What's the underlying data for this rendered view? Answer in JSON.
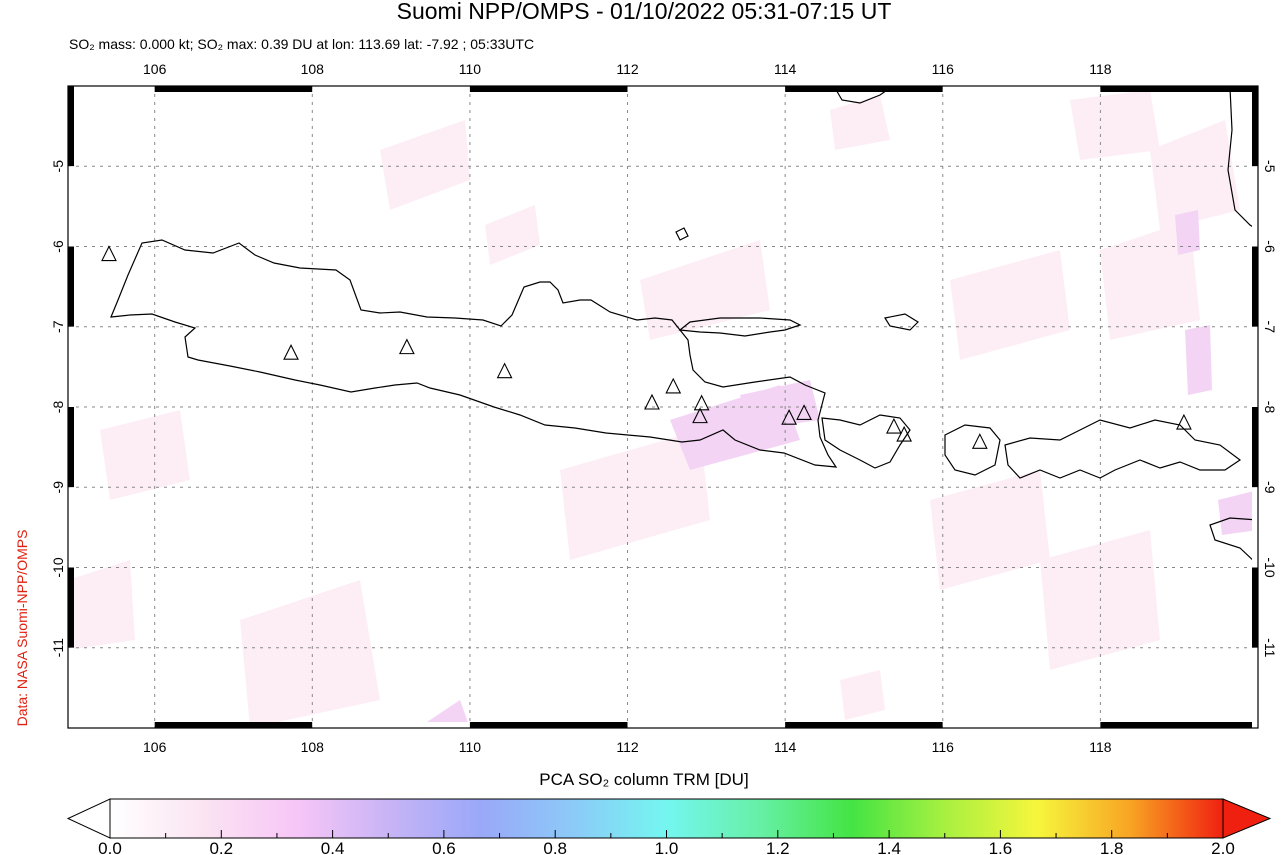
{
  "title": "Suomi NPP/OMPS - 01/10/2022 05:31-07:15 UT",
  "subtitle": "SO₂ mass: 0.000 kt; SO₂ max: 0.39 DU at lon: 113.69 lat: -7.92 ; 05:33UTC",
  "credit": "Data: NASA Suomi-NPP/OMPS",
  "map": {
    "lon_range": [
      104.9,
      120.0
    ],
    "lat_range": [
      -12.0,
      -4.0
    ],
    "lon_ticks": [
      "106",
      "108",
      "110",
      "112",
      "114",
      "116",
      "118"
    ],
    "lat_ticks": [
      "-5",
      "-6",
      "-7",
      "-8",
      "-9",
      "-10",
      "-11"
    ],
    "grid": true,
    "volcanoes": [
      {
        "lon": 105.42,
        "lat": -6.1
      },
      {
        "lon": 107.73,
        "lat": -7.33
      },
      {
        "lon": 109.2,
        "lat": -7.26
      },
      {
        "lon": 110.44,
        "lat": -7.56
      },
      {
        "lon": 112.31,
        "lat": -7.95
      },
      {
        "lon": 112.58,
        "lat": -7.75
      },
      {
        "lon": 112.94,
        "lat": -7.96
      },
      {
        "lon": 112.92,
        "lat": -8.12
      },
      {
        "lon": 114.05,
        "lat": -8.14
      },
      {
        "lon": 114.24,
        "lat": -8.08
      },
      {
        "lon": 115.38,
        "lat": -8.25
      },
      {
        "lon": 115.51,
        "lat": -8.35
      },
      {
        "lon": 116.47,
        "lat": -8.44
      },
      {
        "lon": 119.06,
        "lat": -8.2
      }
    ]
  },
  "colorbar": {
    "label": "PCA SO₂ column TRM [DU]",
    "range": [
      0.0,
      2.0
    ],
    "tick_labels": [
      "0.0",
      "0.2",
      "0.4",
      "0.6",
      "0.8",
      "1.0",
      "1.2",
      "1.4",
      "1.6",
      "1.8",
      "2.0"
    ],
    "colors": [
      "#ffffff",
      "#fbe4f2",
      "#f7c6f7",
      "#c8b4f6",
      "#9aa8f8",
      "#8ccaf8",
      "#74f6f0",
      "#66f0a6",
      "#44e444",
      "#a8f040",
      "#f6f63c",
      "#f8a424",
      "#f02010"
    ]
  }
}
